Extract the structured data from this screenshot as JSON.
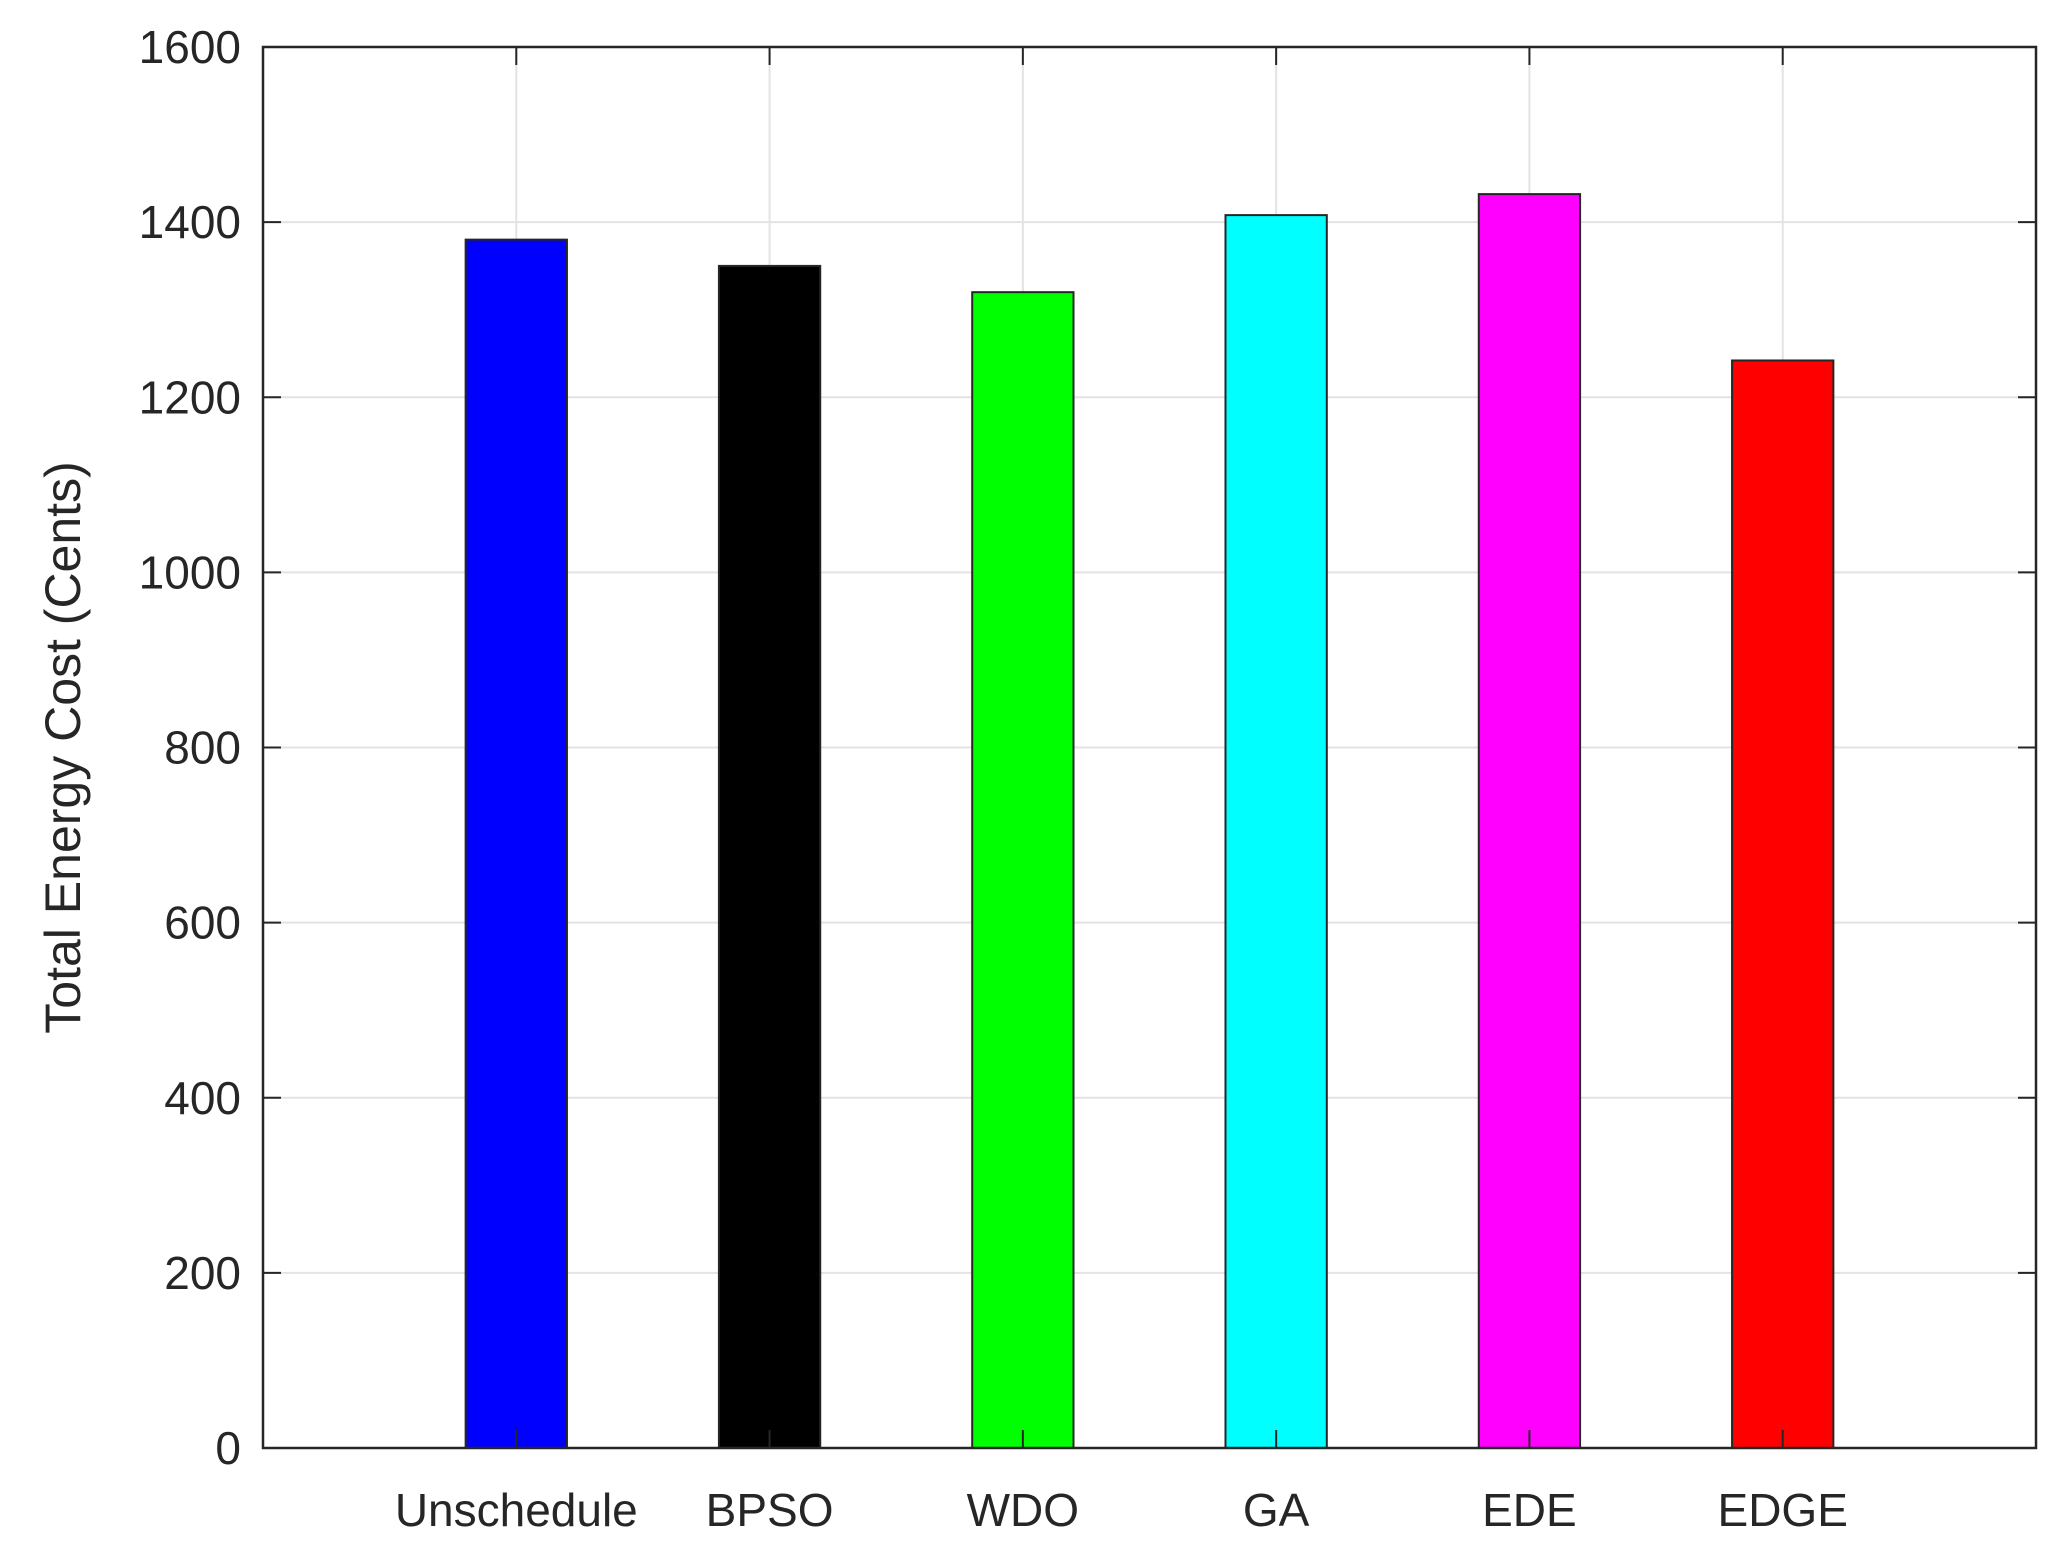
{
  "chart_data": {
    "type": "bar",
    "title": "",
    "xlabel": "",
    "ylabel": "Total Energy Cost (Cents)",
    "categories": [
      "Unschedule",
      "BPSO",
      "WDO",
      "GA",
      "EDE",
      "EDGE"
    ],
    "values": [
      1380,
      1350,
      1320,
      1408,
      1432,
      1242
    ],
    "colors": [
      "#0000ff",
      "#000000",
      "#00ff00",
      "#00ffff",
      "#ff00ff",
      "#ff0000"
    ],
    "ylim": [
      0,
      1600
    ],
    "yticks": [
      0,
      200,
      400,
      600,
      800,
      1000,
      1200,
      1400,
      1600
    ],
    "xlim": [
      0,
      7
    ],
    "grid": true,
    "legend": "none"
  }
}
